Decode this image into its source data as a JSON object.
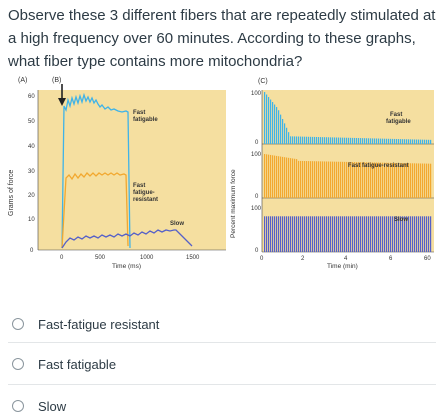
{
  "question": "Observe these 3 different fibers that are repeatedly stimulated at a high frequency over 60 minutes. According to these graphs, what fiber type contains more mitochondria?",
  "figure": {
    "panel_a": "(A)",
    "panel_b": "(B)",
    "panel_c": "(C)",
    "left_chart": {
      "ylabel": "Grams of force",
      "xlabel": "Time (ms)",
      "yticks": [
        "0",
        "10",
        "20",
        "30",
        "40",
        "50",
        "60"
      ],
      "xticks": [
        "0",
        "500",
        "1000",
        "1500"
      ],
      "labels": {
        "fast_fatigable": [
          "Fast",
          "fatigable"
        ],
        "fast_fatigue_resistant": [
          "Fast",
          "fatigue-",
          "resistant"
        ],
        "slow": "Slow"
      }
    },
    "right_chart": {
      "ylabel": "Percent maximum force",
      "xlabel": "Time (min)",
      "xticks": [
        "0",
        "2",
        "4",
        "6",
        "60"
      ],
      "panels": [
        {
          "top": "100",
          "bottom": "0",
          "label": [
            "Fast",
            "fatigable"
          ]
        },
        {
          "top": "100",
          "bottom": "0",
          "label": [
            "Fast fatigue-resistant"
          ]
        },
        {
          "top": "100",
          "bottom": "0",
          "label": [
            "Slow"
          ]
        }
      ]
    },
    "colors": {
      "background": "#f5dfa0",
      "fast_fatigable": "#3fb3e8",
      "fast_fatigue_resistant": "#f2a82f",
      "slow": "#5560c8"
    }
  },
  "options": [
    {
      "label": "Fast-fatigue resistant"
    },
    {
      "label": "Fast fatigable"
    },
    {
      "label": "Slow"
    }
  ]
}
